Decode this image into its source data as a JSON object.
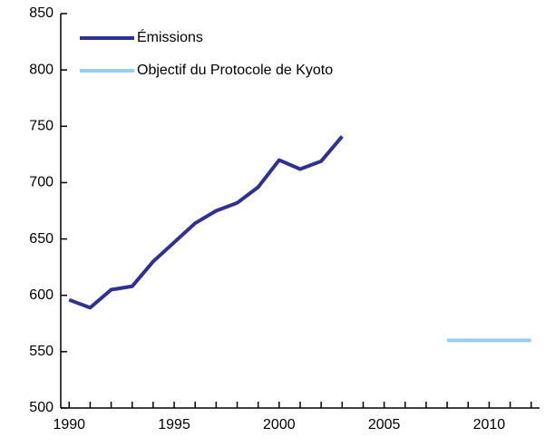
{
  "chart_data": {
    "type": "line",
    "series": [
      {
        "name": "Émissions",
        "color": "#2e3192",
        "x": [
          1990,
          1991,
          1992,
          1993,
          1994,
          1995,
          1996,
          1997,
          1998,
          1999,
          2000,
          2001,
          2002,
          2003
        ],
        "values": [
          596,
          589,
          605,
          608,
          630,
          647,
          664,
          675,
          682,
          696,
          720,
          712,
          719,
          741
        ]
      },
      {
        "name": "Objectif du Protocole de Kyoto",
        "color": "#99ccee",
        "x": [
          2008,
          2012
        ],
        "values": [
          560,
          560
        ]
      }
    ],
    "xlim": [
      1989.6,
      2012.4
    ],
    "xticks": [
      1990,
      1995,
      2000,
      2005,
      2010
    ],
    "ylim": [
      500,
      850
    ],
    "yticks": [
      500,
      550,
      600,
      650,
      700,
      750,
      800,
      850
    ],
    "grid": false,
    "legend": "top-left"
  }
}
